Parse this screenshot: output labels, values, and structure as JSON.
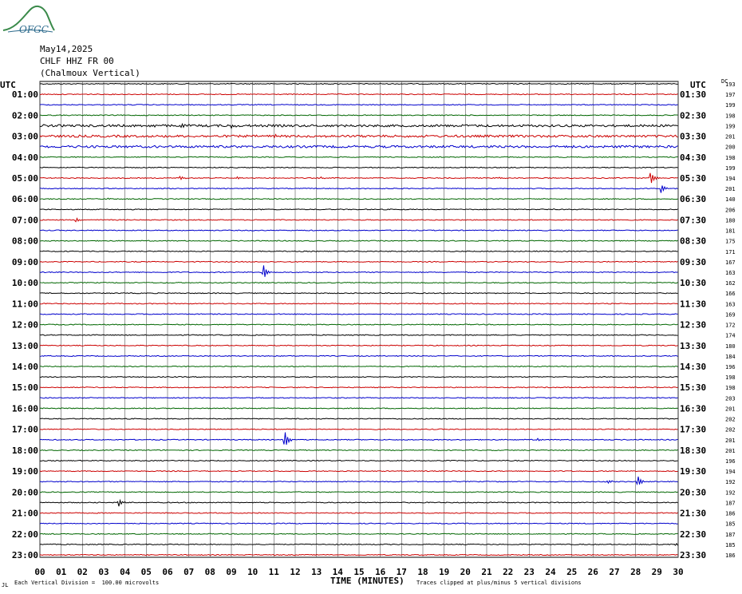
{
  "header": {
    "logo_text": "OFGC",
    "date": "May14,2025",
    "station": "CHLF HHZ FR 00",
    "location": "(Chalmoux Vertical)"
  },
  "axes": {
    "left_unit": "UTC",
    "right_unit": "UTC",
    "dc_label": "DC"
  },
  "footer": {
    "scale_note": "Each Vertical Division =  100.00 microvolts",
    "clip_note": "Traces clipped at plus/minus 5 vertical divisions",
    "corner_mark": "JL"
  },
  "chart_data": {
    "type": "helicorder",
    "xlabel": "TIME (MINUTES)",
    "xlim": [
      0,
      30
    ],
    "x_ticks": [
      "00",
      "01",
      "02",
      "03",
      "04",
      "05",
      "06",
      "07",
      "08",
      "09",
      "10",
      "11",
      "12",
      "13",
      "14",
      "15",
      "16",
      "17",
      "18",
      "19",
      "20",
      "21",
      "22",
      "23",
      "24",
      "25",
      "26",
      "27",
      "28",
      "29",
      "30"
    ],
    "line_duration_minutes": 30,
    "trace_colors": [
      "#000000",
      "#cc0000",
      "#0000cc",
      "#006600"
    ],
    "left_labels": [
      "01:00",
      "02:00",
      "03:00",
      "04:00",
      "05:00",
      "06:00",
      "07:00",
      "08:00",
      "09:00",
      "10:00",
      "11:00",
      "12:00",
      "13:00",
      "14:00",
      "15:00",
      "16:00",
      "17:00",
      "18:00",
      "19:00",
      "20:00",
      "21:00",
      "22:00",
      "23:00"
    ],
    "right_labels": [
      "01:30",
      "02:30",
      "03:30",
      "04:30",
      "05:30",
      "06:30",
      "07:30",
      "08:30",
      "09:30",
      "10:30",
      "11:30",
      "12:30",
      "13:30",
      "14:30",
      "15:30",
      "16:30",
      "17:30",
      "18:30",
      "19:30",
      "20:30",
      "21:30",
      "22:30",
      "23:30"
    ],
    "dc_offsets": [
      193,
      197,
      199,
      198,
      199,
      201,
      200,
      198,
      199,
      194,
      201,
      140,
      206,
      180,
      181,
      175,
      171,
      167,
      163,
      162,
      166,
      163,
      169,
      172,
      174,
      180,
      184,
      196,
      198,
      198,
      203,
      201,
      202,
      202,
      201,
      201,
      196,
      194,
      192,
      192,
      187,
      186,
      185,
      187,
      185,
      186
    ],
    "events": [
      {
        "line": 4,
        "minute": 5.2,
        "size": 3
      },
      {
        "line": 4,
        "minute": 6.6,
        "size": 2
      },
      {
        "line": 4,
        "minute": 9.0,
        "size": 2
      },
      {
        "line": 4,
        "minute": 28.8,
        "size": 2
      },
      {
        "line": 5,
        "minute": 11.0,
        "size": 1.5
      },
      {
        "line": 6,
        "minute": 5.5,
        "size": 1.5
      },
      {
        "line": 9,
        "minute": 6.6,
        "size": 3
      },
      {
        "line": 9,
        "minute": 9.3,
        "size": 2
      },
      {
        "line": 9,
        "minute": 13.2,
        "size": 2
      },
      {
        "line": 9,
        "minute": 21.6,
        "size": 10
      },
      {
        "line": 9,
        "minute": 28.7,
        "size": 10
      },
      {
        "line": 10,
        "minute": 29.2,
        "size": 6
      },
      {
        "line": 11,
        "minute": 3.2,
        "size": 2
      },
      {
        "line": 13,
        "minute": 1.7,
        "size": 9
      },
      {
        "line": 18,
        "minute": 10.5,
        "size": 10
      },
      {
        "line": 34,
        "minute": 11.5,
        "size": 12
      },
      {
        "line": 34,
        "minute": 23.4,
        "size": 4
      },
      {
        "line": 38,
        "minute": 21.8,
        "size": 3
      },
      {
        "line": 38,
        "minute": 26.7,
        "size": 3
      },
      {
        "line": 38,
        "minute": 28.1,
        "size": 8
      },
      {
        "line": 40,
        "minute": 3.7,
        "size": 9
      },
      {
        "line": 44,
        "minute": 29.9,
        "size": 2
      }
    ],
    "noisy_lines": [
      4,
      5,
      6
    ]
  }
}
